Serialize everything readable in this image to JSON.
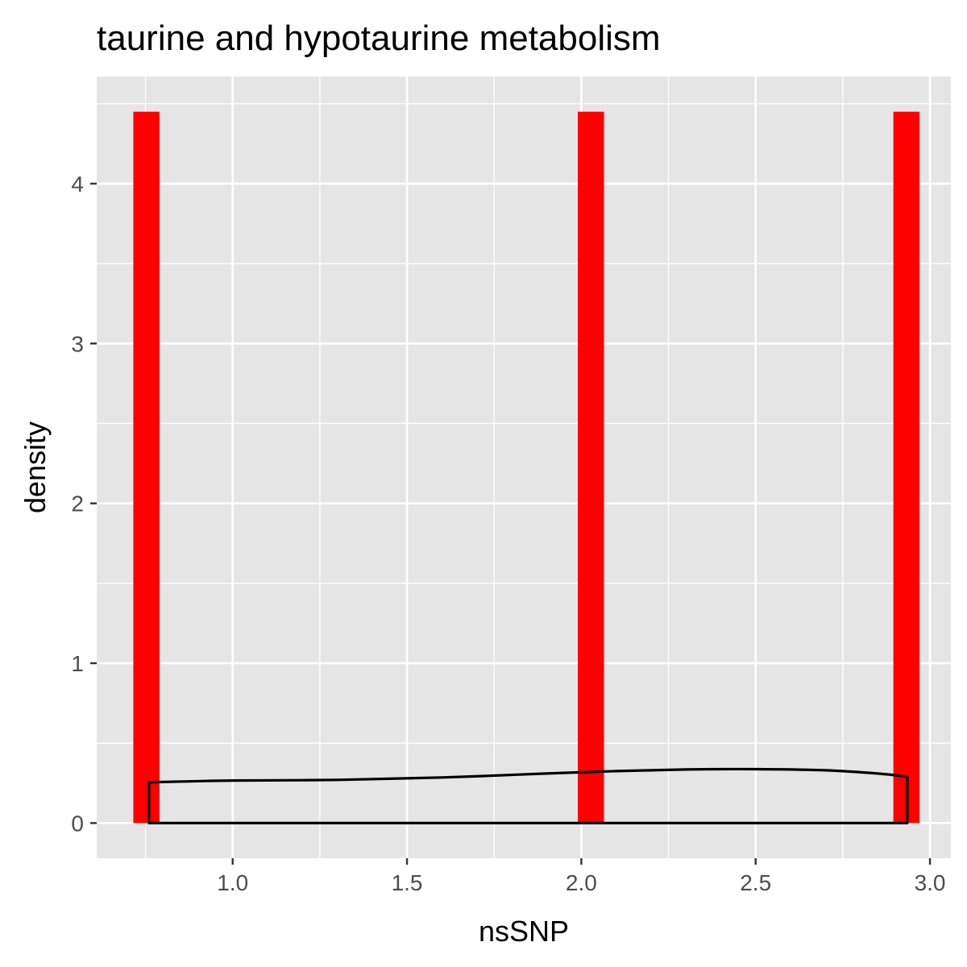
{
  "chart_data": {
    "type": "histogram",
    "title": "taurine and hypotaurine metabolism",
    "xlabel": "nsSNP",
    "ylabel": "density",
    "xlim": [
      0.61,
      3.06
    ],
    "ylim": [
      -0.22,
      4.67
    ],
    "x_ticks": [
      1.0,
      1.5,
      2.0,
      2.5,
      3.0
    ],
    "x_tick_labels": [
      "1.0",
      "1.5",
      "2.0",
      "2.5",
      "3.0"
    ],
    "y_ticks": [
      0,
      1,
      2,
      3,
      4
    ],
    "y_tick_labels": [
      "0",
      "1",
      "2",
      "3",
      "4"
    ],
    "grid": true,
    "bars": [
      {
        "x0": 0.715,
        "x1": 0.79,
        "density": 4.45
      },
      {
        "x0": 1.99,
        "x1": 2.065,
        "density": 4.45
      },
      {
        "x0": 2.895,
        "x1": 2.97,
        "density": 4.45
      }
    ],
    "density_curve": {
      "x": [
        0.76,
        1.0,
        1.3,
        1.6,
        1.9,
        2.1,
        2.3,
        2.5,
        2.7,
        2.85,
        2.935
      ],
      "y": [
        0.255,
        0.266,
        0.27,
        0.285,
        0.31,
        0.325,
        0.335,
        0.337,
        0.33,
        0.31,
        0.29
      ]
    },
    "colors": {
      "bars": "#ff0000",
      "panel_background": "#e5e5e5",
      "grid": "#ffffff",
      "curve": "#000000",
      "tick_text": "#4d4d4d",
      "tick_mark": "#333333"
    }
  }
}
